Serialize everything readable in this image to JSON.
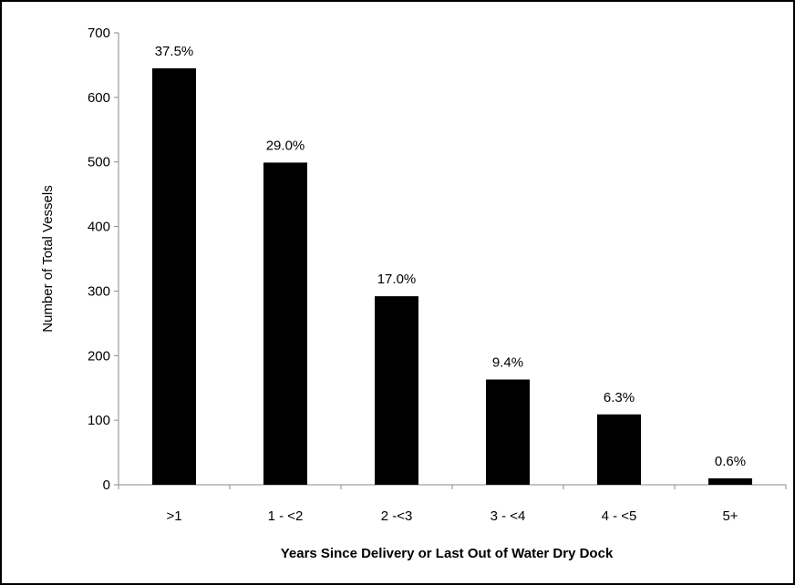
{
  "chart_data": {
    "type": "bar",
    "categories": [
      ">1",
      "1 - <2",
      "2 -<3",
      "3 - <4",
      "4 - <5",
      "5+"
    ],
    "values": [
      645,
      499,
      292,
      163,
      109,
      10
    ],
    "data_labels": [
      "37.5%",
      "29.0%",
      "17.0%",
      "9.4%",
      "6.3%",
      "0.6%"
    ],
    "xlabel": "Years Since Delivery or Last Out of Water Dry Dock",
    "ylabel": "Number of Total Vessels",
    "ylim": [
      0,
      700
    ],
    "yticks": [
      "0",
      "100",
      "200",
      "300",
      "400",
      "500",
      "600",
      "700"
    ],
    "bar_color": "#000000",
    "grid": false,
    "legend": "none"
  }
}
